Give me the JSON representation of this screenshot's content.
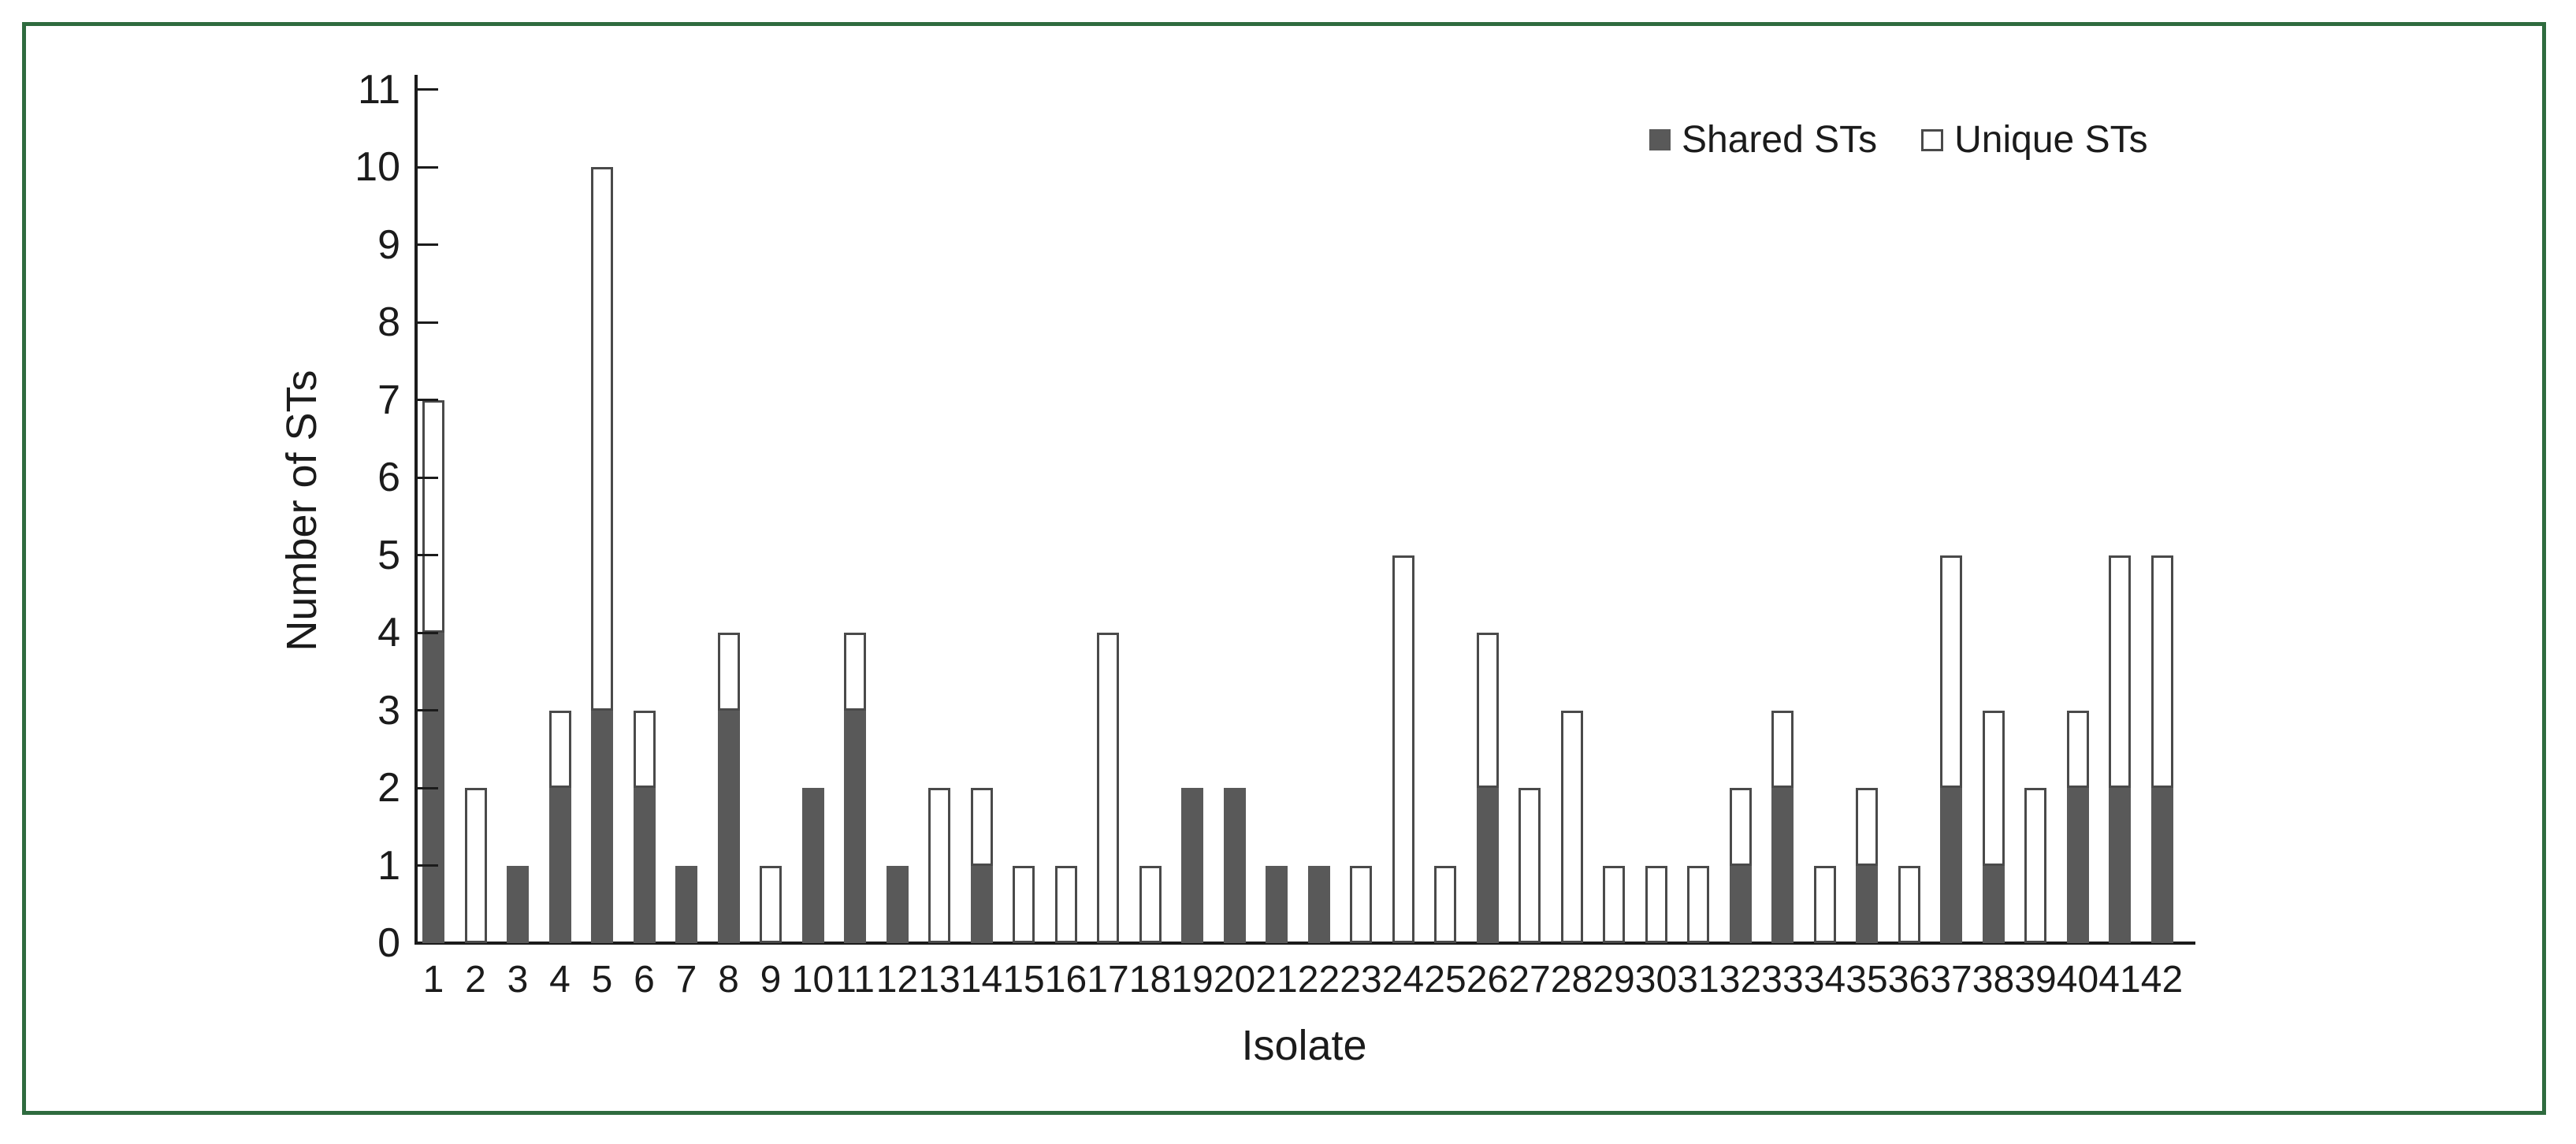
{
  "figure": {
    "border_color": "#2f6b3f",
    "background_color": "#ffffff"
  },
  "chart_data": {
    "type": "bar",
    "stacked": true,
    "title": "",
    "xlabel": "Isolate",
    "ylabel": "Number of STs",
    "ylim": [
      0,
      11
    ],
    "yticks": [
      0,
      1,
      2,
      3,
      4,
      5,
      6,
      7,
      8,
      9,
      10,
      11
    ],
    "grid": false,
    "legend_position": "top-right",
    "categories": [
      "1",
      "2",
      "3",
      "4",
      "5",
      "6",
      "7",
      "8",
      "9",
      "10",
      "11",
      "12",
      "13",
      "14",
      "15",
      "16",
      "17",
      "18",
      "19",
      "20",
      "21",
      "22",
      "23",
      "24",
      "25",
      "26",
      "27",
      "28",
      "29",
      "30",
      "31",
      "32",
      "33",
      "34",
      "35",
      "36",
      "37",
      "38",
      "39",
      "40",
      "41",
      "42"
    ],
    "series": [
      {
        "name": "Shared STs",
        "color": "#595959",
        "border_color": "#4a4a4a",
        "values": [
          4,
          0,
          1,
          2,
          3,
          2,
          1,
          3,
          0,
          2,
          3,
          1,
          0,
          1,
          0,
          0,
          0,
          0,
          2,
          2,
          1,
          1,
          0,
          0,
          0,
          2,
          0,
          0,
          0,
          0,
          0,
          1,
          2,
          0,
          1,
          0,
          2,
          1,
          0,
          2,
          2,
          2
        ]
      },
      {
        "name": "Unique STs",
        "color": "#ffffff",
        "border_color": "#4a4a4a",
        "values": [
          3,
          2,
          0,
          1,
          7,
          1,
          0,
          1,
          1,
          0,
          1,
          0,
          2,
          1,
          1,
          1,
          4,
          1,
          0,
          0,
          0,
          0,
          1,
          5,
          1,
          2,
          2,
          3,
          1,
          1,
          1,
          1,
          1,
          1,
          1,
          1,
          3,
          2,
          2,
          1,
          3,
          3
        ]
      }
    ],
    "axis_color": "#1b1b1b",
    "text_color": "#1b1b1b"
  }
}
